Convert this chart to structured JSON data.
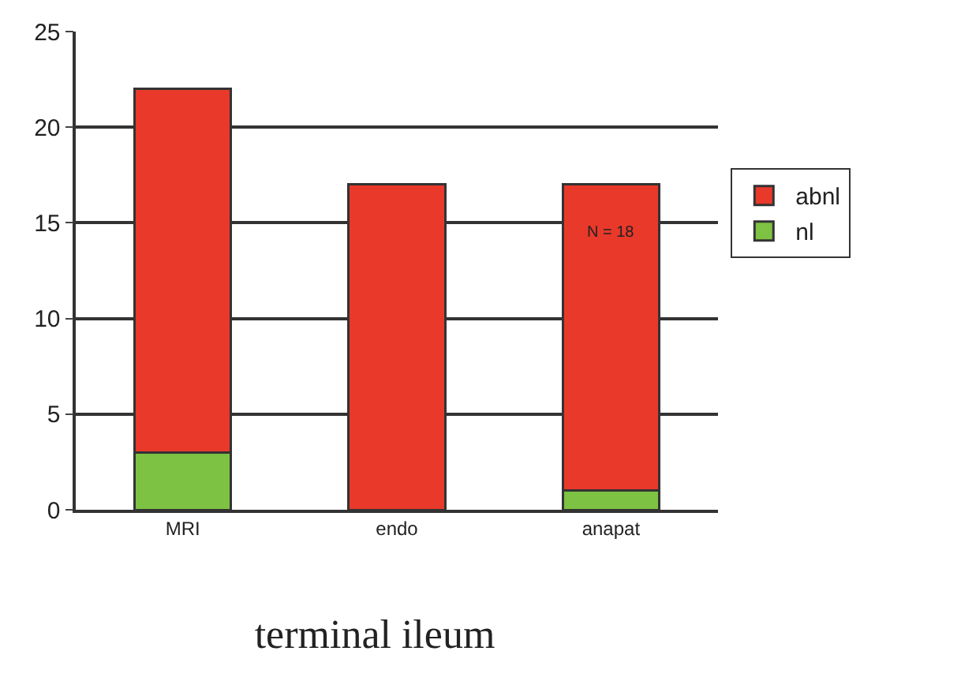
{
  "chart_data": {
    "type": "bar",
    "title": "terminal ileum",
    "categories": [
      "MRI",
      "endo",
      "anapat"
    ],
    "stacked": true,
    "series": [
      {
        "name": "nl",
        "color": "#7dc242",
        "values": [
          3,
          0,
          1
        ]
      },
      {
        "name": "abnl",
        "color": "#e8392a",
        "values": [
          19,
          17,
          16
        ]
      }
    ],
    "ylim": [
      0,
      25
    ],
    "yticks": [
      0,
      5,
      10,
      15,
      20,
      25
    ],
    "grid": "y",
    "legend": "right",
    "annotations": [
      "N = 18"
    ]
  }
}
